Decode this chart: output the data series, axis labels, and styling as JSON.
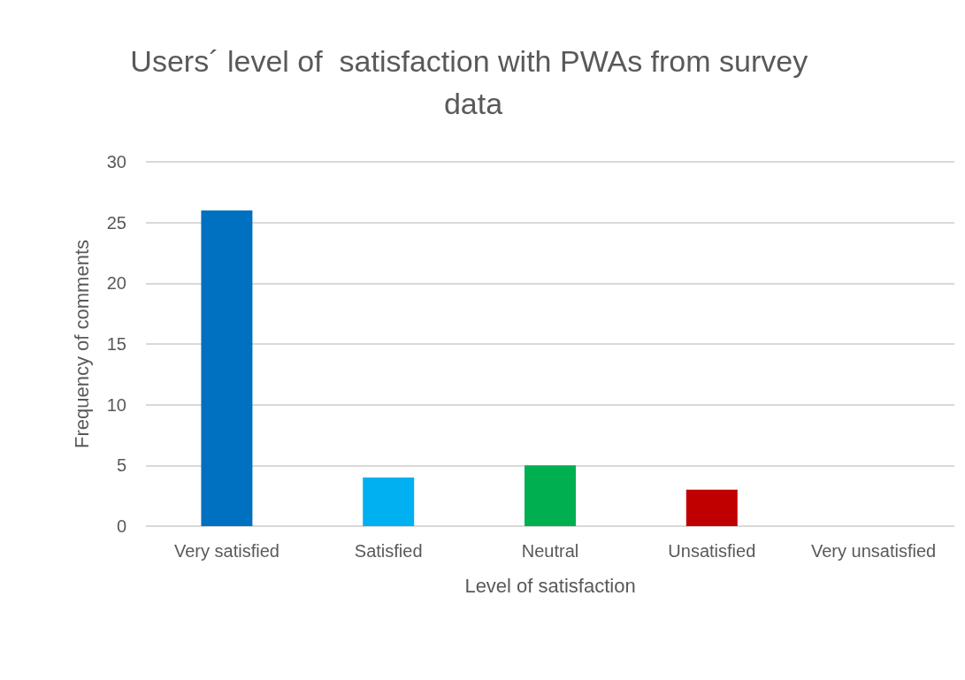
{
  "chart_data": {
    "type": "bar",
    "title": "Users´ level of  satisfaction with PWAs from survey data",
    "xlabel": "Level of satisfaction",
    "ylabel": "Frequency of comments",
    "categories": [
      "Very satisfied",
      "Satisfied",
      "Neutral",
      "Unsatisfied",
      "Very unsatisfied"
    ],
    "values": [
      26,
      4,
      5,
      3,
      0
    ],
    "colors": [
      "#0070c0",
      "#00b0f0",
      "#00b050",
      "#c00000",
      "#7f7f7f"
    ],
    "ylim": [
      0,
      30
    ],
    "yticks": [
      0,
      5,
      10,
      15,
      20,
      25,
      30
    ],
    "grid": "y"
  }
}
